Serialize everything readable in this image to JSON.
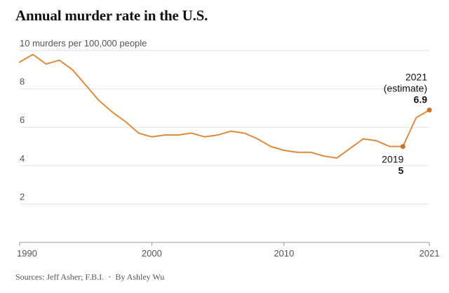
{
  "chart_data": {
    "type": "line",
    "title": "Annual murder rate in the U.S.",
    "ylabel": "10 murders per 100,000 people",
    "xlabel": "",
    "xlim": [
      1990,
      2021
    ],
    "ylim": [
      0,
      10
    ],
    "y_ticks": [
      {
        "value": 10,
        "label": "10 murders per 100,000 people"
      },
      {
        "value": 8,
        "label": "8"
      },
      {
        "value": 6,
        "label": "6"
      },
      {
        "value": 4,
        "label": "4"
      },
      {
        "value": 2,
        "label": "2"
      }
    ],
    "x_ticks": [
      {
        "value": 1990,
        "label": "1990"
      },
      {
        "value": 2000,
        "label": "2000"
      },
      {
        "value": 2010,
        "label": "2010"
      },
      {
        "value": 2021,
        "label": "2021"
      }
    ],
    "grid": true,
    "line_color": "#e08a3c",
    "series": [
      {
        "x": [
          1990,
          1991,
          1992,
          1993,
          1994,
          1995,
          1996,
          1997,
          1998,
          1999,
          2000,
          2001,
          2002,
          2003,
          2004,
          2005,
          2006,
          2007,
          2008,
          2009,
          2010,
          2011,
          2012,
          2013,
          2014,
          2015,
          2016,
          2017,
          2018,
          2019,
          2020,
          2021
        ],
        "y": [
          9.4,
          9.8,
          9.3,
          9.5,
          9.0,
          8.2,
          7.4,
          6.8,
          6.3,
          5.7,
          5.5,
          5.6,
          5.6,
          5.7,
          5.5,
          5.6,
          5.8,
          5.7,
          5.4,
          5.0,
          4.8,
          4.7,
          4.7,
          4.5,
          4.4,
          4.9,
          5.4,
          5.3,
          5.0,
          5.0,
          6.5,
          6.9
        ]
      }
    ],
    "highlights": [
      {
        "x": 2019,
        "y": 5,
        "year_label": "2019",
        "value_label": "5"
      },
      {
        "x": 2021,
        "y": 6.9,
        "year_label": "2021",
        "note": "(estimate)",
        "value_label": "6.9"
      }
    ]
  },
  "footer": {
    "sources": "Sources: Jeff Asher; F.B.I.",
    "separator": "•",
    "byline": "By Ashley Wu"
  }
}
